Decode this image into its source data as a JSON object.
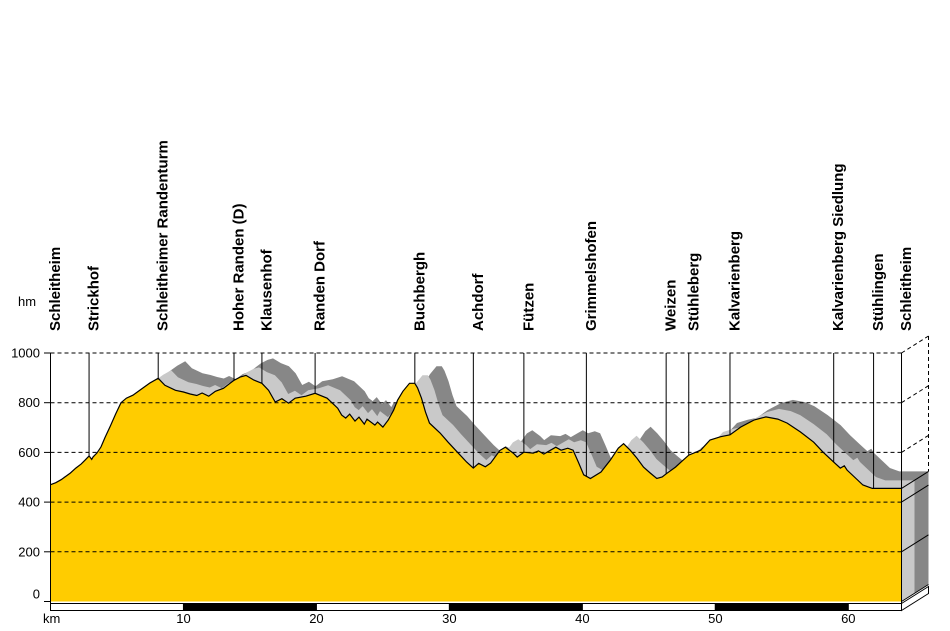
{
  "chart_data": {
    "type": "area",
    "title": "",
    "ylabel": "hm",
    "xlabel": "km",
    "ylim": [
      0,
      1000
    ],
    "xlim": [
      0,
      64
    ],
    "yticks": [
      0,
      200,
      400,
      600,
      800,
      1000
    ],
    "ytick_labels": [
      "0",
      "200",
      "400",
      "600",
      "800",
      "1000"
    ],
    "xticks": [
      10,
      20,
      30,
      40,
      50,
      60
    ],
    "xtick_labels": [
      "10",
      "20",
      "30",
      "40",
      "50",
      "60"
    ],
    "grid": "dashed-horizontal",
    "legend": "none",
    "style": "3d-extruded-profile",
    "colors": {
      "profile_fill": "#FFCC00",
      "shadow_dark": "#878787",
      "shadow_light": "#C9C9C9",
      "outline": "#000000",
      "background": "#FFFFFF"
    },
    "waypoints": [
      {
        "name": "Schleitheim",
        "km": 0
      },
      {
        "name": "Strickhof",
        "km": 2.9
      },
      {
        "name": "Schleitheimer Randenturm",
        "km": 8.1
      },
      {
        "name": "Hoher Randen (D)",
        "km": 13.8
      },
      {
        "name": "Klausenhof",
        "km": 15.9
      },
      {
        "name": "Randen Dorf",
        "km": 19.9
      },
      {
        "name": "Buchbergh",
        "km": 27.4
      },
      {
        "name": "Achdorf",
        "km": 31.8
      },
      {
        "name": "Fützen",
        "km": 35.6
      },
      {
        "name": "Grimmelshofen",
        "km": 40.3
      },
      {
        "name": "Weizen",
        "km": 46.3
      },
      {
        "name": "Stühleberg",
        "km": 48.0
      },
      {
        "name": "Kalvarienberg",
        "km": 51.1
      },
      {
        "name": "Kalvarienberg Siedlung",
        "km": 58.9
      },
      {
        "name": "Stühlingen",
        "km": 61.9
      },
      {
        "name": "Schleitheim",
        "km": 64.0
      }
    ],
    "profile": [
      [
        0,
        470
      ],
      [
        0.4,
        478
      ],
      [
        0.8,
        490
      ],
      [
        1.5,
        517
      ],
      [
        1.9,
        537
      ],
      [
        2.3,
        553
      ],
      [
        2.6,
        569
      ],
      [
        2.9,
        586
      ],
      [
        3.1,
        572
      ],
      [
        3.2,
        582
      ],
      [
        3.5,
        598
      ],
      [
        3.8,
        622
      ],
      [
        4.1,
        660
      ],
      [
        4.5,
        706
      ],
      [
        4.9,
        755
      ],
      [
        5.3,
        800
      ],
      [
        5.7,
        818
      ],
      [
        6.2,
        830
      ],
      [
        6.9,
        857
      ],
      [
        7.5,
        880
      ],
      [
        8.1,
        898
      ],
      [
        8.6,
        870
      ],
      [
        9.4,
        850
      ],
      [
        10,
        843
      ],
      [
        10.5,
        835
      ],
      [
        11,
        829
      ],
      [
        11.4,
        839
      ],
      [
        11.9,
        826
      ],
      [
        12.4,
        846
      ],
      [
        13,
        858
      ],
      [
        13.5,
        878
      ],
      [
        13.8,
        890
      ],
      [
        14.3,
        904
      ],
      [
        14.7,
        910
      ],
      [
        15.3,
        891
      ],
      [
        15.9,
        878
      ],
      [
        16.4,
        850
      ],
      [
        16.9,
        803
      ],
      [
        17.4,
        816
      ],
      [
        17.9,
        798
      ],
      [
        18.4,
        818
      ],
      [
        19.2,
        826
      ],
      [
        19.9,
        838
      ],
      [
        20.8,
        818
      ],
      [
        21.6,
        778
      ],
      [
        21.9,
        750
      ],
      [
        22.2,
        738
      ],
      [
        22.5,
        754
      ],
      [
        22.9,
        726
      ],
      [
        23.2,
        742
      ],
      [
        23.6,
        714
      ],
      [
        23.8,
        734
      ],
      [
        24.4,
        710
      ],
      [
        24.6,
        722
      ],
      [
        25,
        702
      ],
      [
        25.4,
        730
      ],
      [
        25.8,
        770
      ],
      [
        26.1,
        810
      ],
      [
        26.5,
        846
      ],
      [
        27,
        878
      ],
      [
        27.4,
        878
      ],
      [
        27.6,
        860
      ],
      [
        27.9,
        818
      ],
      [
        28.2,
        762
      ],
      [
        28.5,
        718
      ],
      [
        29.3,
        678
      ],
      [
        29.9,
        641
      ],
      [
        30.6,
        601
      ],
      [
        31.3,
        561
      ],
      [
        31.8,
        537
      ],
      [
        32.2,
        556
      ],
      [
        32.7,
        542
      ],
      [
        33.1,
        557
      ],
      [
        33.8,
        608
      ],
      [
        34.2,
        621
      ],
      [
        34.8,
        597
      ],
      [
        35.1,
        581
      ],
      [
        35.6,
        601
      ],
      [
        36.3,
        597
      ],
      [
        36.7,
        606
      ],
      [
        37.1,
        593
      ],
      [
        37.6,
        609
      ],
      [
        38,
        621
      ],
      [
        38.4,
        609
      ],
      [
        38.9,
        617
      ],
      [
        39.3,
        609
      ],
      [
        39.7,
        560
      ],
      [
        40.1,
        510
      ],
      [
        40.6,
        495
      ],
      [
        41.4,
        521
      ],
      [
        42.1,
        569
      ],
      [
        42.7,
        617
      ],
      [
        43.1,
        635
      ],
      [
        43.6,
        609
      ],
      [
        44.1,
        577
      ],
      [
        44.6,
        541
      ],
      [
        45.1,
        517
      ],
      [
        45.6,
        495
      ],
      [
        46,
        501
      ],
      [
        46.3,
        514
      ],
      [
        47,
        541
      ],
      [
        47.5,
        565
      ],
      [
        48,
        589
      ],
      [
        48.9,
        609
      ],
      [
        49.6,
        650
      ],
      [
        50.4,
        663
      ],
      [
        51.1,
        671
      ],
      [
        51.9,
        702
      ],
      [
        52.9,
        730
      ],
      [
        53.8,
        743
      ],
      [
        54.7,
        734
      ],
      [
        55.4,
        718
      ],
      [
        56.4,
        682
      ],
      [
        57.4,
        641
      ],
      [
        58.1,
        601
      ],
      [
        58.9,
        561
      ],
      [
        59.4,
        537
      ],
      [
        59.7,
        546
      ],
      [
        59.9,
        529
      ],
      [
        60.7,
        489
      ],
      [
        61.1,
        469
      ],
      [
        61.8,
        455
      ],
      [
        63,
        455
      ],
      [
        64,
        455
      ]
    ]
  }
}
